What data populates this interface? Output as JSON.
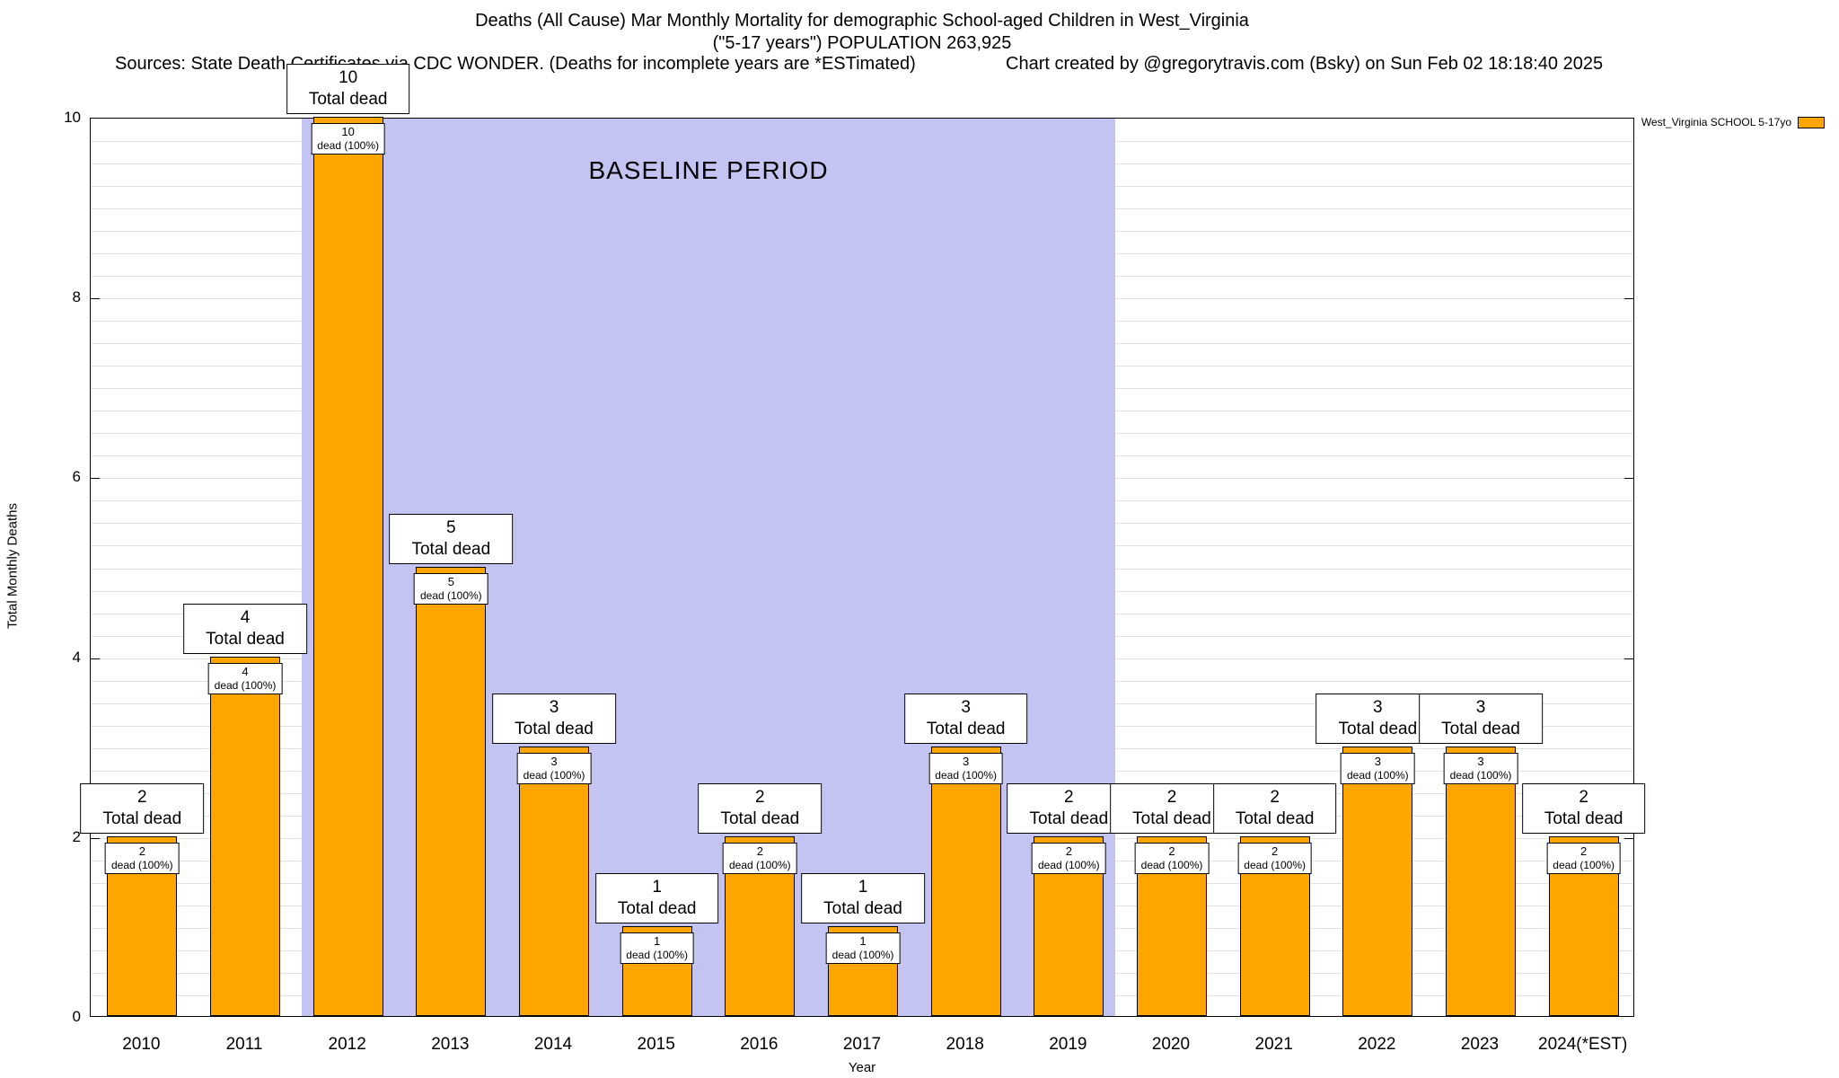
{
  "header": {
    "title_line1": "Deaths (All Cause) Mar Monthly Mortality for demographic School-aged Children in West_Virginia",
    "title_line2": "(\"5-17 years\") POPULATION 263,925",
    "sources": "Sources: State Death Certificates via CDC WONDER. (Deaths for incomplete years are *ESTimated)",
    "credit": "Chart created by @gregorytravis.com (Bsky) on Sun Feb 02 18:18:40 2025"
  },
  "chart_data": {
    "type": "bar",
    "title": "Deaths (All Cause) Mar Monthly Mortality for demographic School-aged Children in West_Virginia (\"5-17 years\") POPULATION 263,925",
    "categories": [
      "2010",
      "2011",
      "2012",
      "2013",
      "2014",
      "2015",
      "2016",
      "2017",
      "2018",
      "2019",
      "2020",
      "2021",
      "2022",
      "2023",
      "2024(*EST)"
    ],
    "values": [
      2,
      4,
      10,
      5,
      3,
      1,
      2,
      1,
      3,
      2,
      2,
      2,
      3,
      3,
      2
    ],
    "xlabel": "Year",
    "ylabel": "Total Monthly Deaths",
    "ylim": [
      0,
      10
    ],
    "yticks": [
      0,
      2,
      4,
      6,
      8,
      10
    ],
    "minor_grid_step": 0.25,
    "grid": "horizontal",
    "bar_color": "#FFA500",
    "bar_border_color": "#000000",
    "bar_top_label_suffix": "Total dead",
    "bar_inner_label_suffix": "dead (100%)",
    "legend": {
      "position": "top-right",
      "entries": [
        {
          "label": "West_Virginia SCHOOL 5-17yo",
          "color": "#FFA500"
        }
      ]
    },
    "annotations": [
      {
        "type": "shaded-region",
        "label": "BASELINE PERIOD",
        "from_category": "2012",
        "to_category": "2019",
        "color": "#c4c4f3"
      }
    ]
  }
}
